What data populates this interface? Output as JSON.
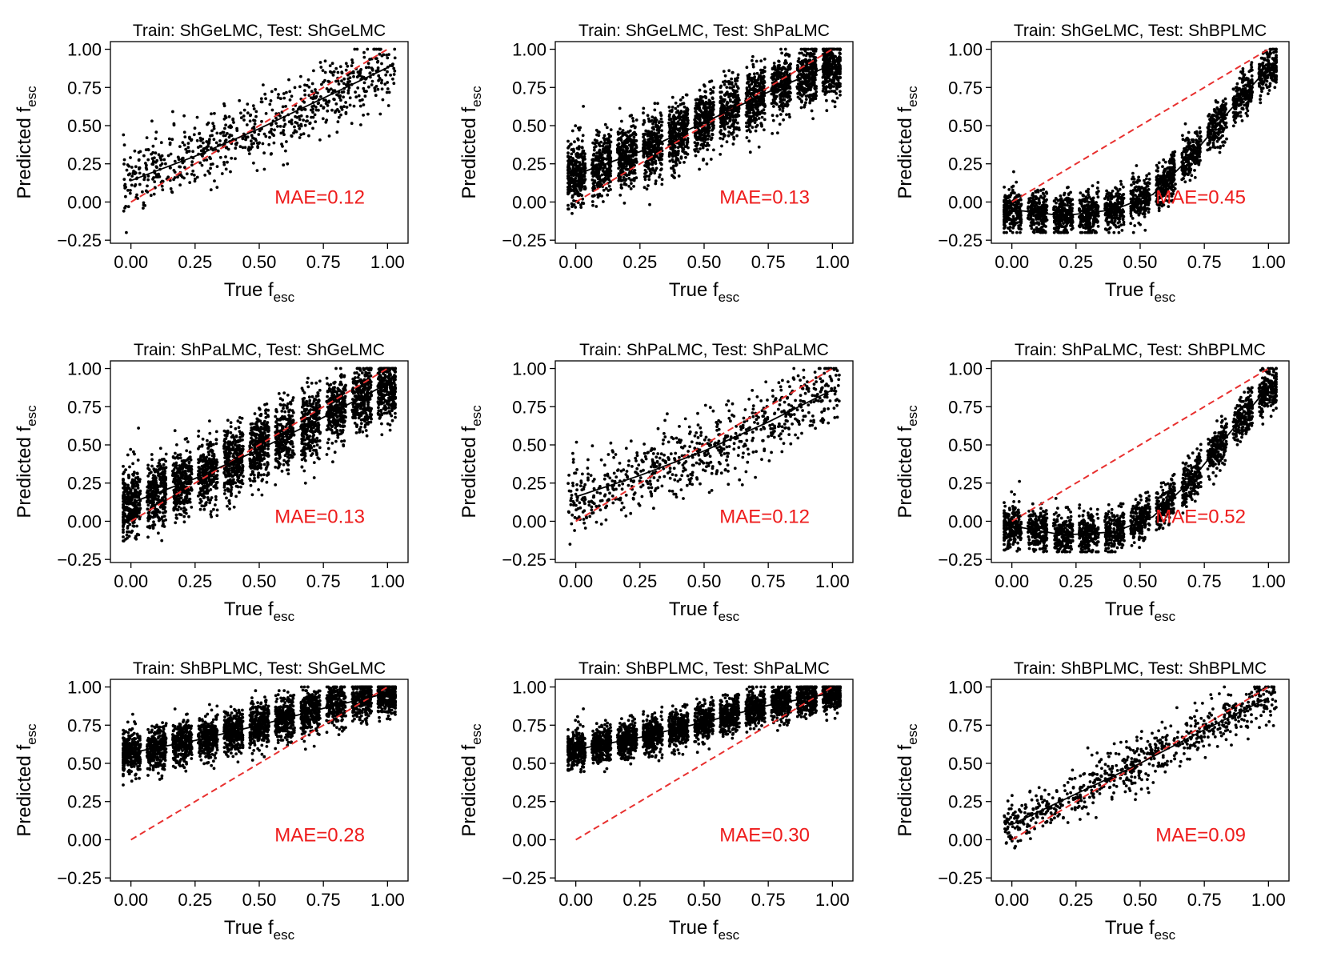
{
  "figure": {
    "x_label_main": "True f",
    "x_label_sub": "esc",
    "y_label_main": "Predicted f",
    "y_label_sub": "esc",
    "point_color": "#000000",
    "identity_line_color": "#e8302f",
    "fit_line_color": "#000000",
    "mae_color": "#ee1c1c"
  },
  "chart_data": [
    {
      "type": "scatter",
      "title": "Train: ShGeLMC, Test: ShGeLMC",
      "mae_label": "MAE=0.12",
      "xlim": [
        -0.08,
        1.08
      ],
      "ylim": [
        -0.27,
        1.05
      ],
      "xticks": [
        "0.00",
        "0.25",
        "0.50",
        "0.75",
        "1.00"
      ],
      "yticks": [
        "−0.25",
        "0.00",
        "0.25",
        "0.50",
        "0.75",
        "1.00"
      ],
      "x_grouped": false,
      "n_points": 750,
      "noise_sd": 0.11,
      "fit_line": [
        [
          0.0,
          0.14
        ],
        [
          0.25,
          0.3
        ],
        [
          0.5,
          0.48
        ],
        [
          0.75,
          0.68
        ],
        [
          1.0,
          0.88
        ]
      ]
    },
    {
      "type": "scatter",
      "title": "Train: ShGeLMC, Test: ShPaLMC",
      "mae_label": "MAE=0.13",
      "xlim": [
        -0.08,
        1.08
      ],
      "ylim": [
        -0.27,
        1.05
      ],
      "xticks": [
        "0.00",
        "0.25",
        "0.50",
        "0.75",
        "1.00"
      ],
      "yticks": [
        "−0.25",
        "0.00",
        "0.25",
        "0.50",
        "0.75",
        "1.00"
      ],
      "x_grouped": true,
      "n_points": 3200,
      "noise_sd": 0.1,
      "fit_line": [
        [
          0.0,
          0.18
        ],
        [
          0.25,
          0.33
        ],
        [
          0.5,
          0.52
        ],
        [
          0.75,
          0.72
        ],
        [
          1.0,
          0.9
        ]
      ]
    },
    {
      "type": "scatter",
      "title": "Train: ShGeLMC, Test: ShBPLMC",
      "mae_label": "MAE=0.45",
      "xlim": [
        -0.08,
        1.08
      ],
      "ylim": [
        -0.27,
        1.05
      ],
      "xticks": [
        "0.00",
        "0.25",
        "0.50",
        "0.75",
        "1.00"
      ],
      "yticks": [
        "−0.25",
        "0.00",
        "0.25",
        "0.50",
        "0.75",
        "1.00"
      ],
      "x_grouped": true,
      "n_points": 2400,
      "noise_sd": 0.07,
      "fit_line": [
        [
          0.0,
          -0.05
        ],
        [
          0.2,
          -0.09
        ],
        [
          0.4,
          -0.05
        ],
        [
          0.55,
          0.05
        ],
        [
          0.7,
          0.3
        ],
        [
          0.85,
          0.6
        ],
        [
          1.0,
          0.88
        ]
      ]
    },
    {
      "type": "scatter",
      "title": "Train: ShPaLMC, Test: ShGeLMC",
      "mae_label": "MAE=0.13",
      "xlim": [
        -0.08,
        1.08
      ],
      "ylim": [
        -0.27,
        1.05
      ],
      "xticks": [
        "0.00",
        "0.25",
        "0.50",
        "0.75",
        "1.00"
      ],
      "yticks": [
        "−0.25",
        "0.00",
        "0.25",
        "0.50",
        "0.75",
        "1.00"
      ],
      "x_grouped": true,
      "n_points": 3200,
      "noise_sd": 0.11,
      "fit_line": [
        [
          0.0,
          0.12
        ],
        [
          0.25,
          0.28
        ],
        [
          0.5,
          0.47
        ],
        [
          0.75,
          0.68
        ],
        [
          1.0,
          0.9
        ]
      ]
    },
    {
      "type": "scatter",
      "title": "Train: ShPaLMC, Test: ShPaLMC",
      "mae_label": "MAE=0.12",
      "xlim": [
        -0.08,
        1.08
      ],
      "ylim": [
        -0.27,
        1.05
      ],
      "xticks": [
        "0.00",
        "0.25",
        "0.50",
        "0.75",
        "1.00"
      ],
      "yticks": [
        "−0.25",
        "0.00",
        "0.25",
        "0.50",
        "0.75",
        "1.00"
      ],
      "x_grouped": false,
      "n_points": 750,
      "noise_sd": 0.12,
      "fit_line": [
        [
          0.0,
          0.16
        ],
        [
          0.25,
          0.3
        ],
        [
          0.5,
          0.46
        ],
        [
          0.75,
          0.65
        ],
        [
          1.0,
          0.86
        ]
      ]
    },
    {
      "type": "scatter",
      "title": "Train: ShPaLMC, Test: ShBPLMC",
      "mae_label": "MAE=0.52",
      "xlim": [
        -0.08,
        1.08
      ],
      "ylim": [
        -0.27,
        1.05
      ],
      "xticks": [
        "0.00",
        "0.25",
        "0.50",
        "0.75",
        "1.00"
      ],
      "yticks": [
        "−0.25",
        "0.00",
        "0.25",
        "0.50",
        "0.75",
        "1.00"
      ],
      "x_grouped": true,
      "n_points": 2200,
      "noise_sd": 0.07,
      "fit_line": [
        [
          0.0,
          -0.03
        ],
        [
          0.2,
          -0.09
        ],
        [
          0.4,
          -0.07
        ],
        [
          0.55,
          0.03
        ],
        [
          0.7,
          0.27
        ],
        [
          0.85,
          0.58
        ],
        [
          1.0,
          0.88
        ]
      ]
    },
    {
      "type": "scatter",
      "title": "Train: ShBPLMC, Test: ShGeLMC",
      "mae_label": "MAE=0.28",
      "xlim": [
        -0.08,
        1.08
      ],
      "ylim": [
        -0.27,
        1.05
      ],
      "xticks": [
        "0.00",
        "0.25",
        "0.50",
        "0.75",
        "1.00"
      ],
      "yticks": [
        "−0.25",
        "0.00",
        "0.25",
        "0.50",
        "0.75",
        "1.00"
      ],
      "x_grouped": true,
      "n_points": 3200,
      "noise_sd": 0.07,
      "fit_line": [
        [
          0.0,
          0.57
        ],
        [
          0.25,
          0.65
        ],
        [
          0.5,
          0.75
        ],
        [
          0.75,
          0.86
        ],
        [
          1.0,
          0.96
        ]
      ]
    },
    {
      "type": "scatter",
      "title": "Train: ShBPLMC, Test: ShPaLMC",
      "mae_label": "MAE=0.30",
      "xlim": [
        -0.08,
        1.08
      ],
      "ylim": [
        -0.27,
        1.05
      ],
      "xticks": [
        "0.00",
        "0.25",
        "0.50",
        "0.75",
        "1.00"
      ],
      "yticks": [
        "−0.25",
        "0.00",
        "0.25",
        "0.50",
        "0.75",
        "1.00"
      ],
      "x_grouped": true,
      "n_points": 3200,
      "noise_sd": 0.06,
      "fit_line": [
        [
          0.0,
          0.59
        ],
        [
          0.25,
          0.67
        ],
        [
          0.5,
          0.77
        ],
        [
          0.75,
          0.88
        ],
        [
          1.0,
          0.96
        ]
      ]
    },
    {
      "type": "scatter",
      "title": "Train: ShBPLMC, Test: ShBPLMC",
      "mae_label": "MAE=0.09",
      "xlim": [
        -0.08,
        1.08
      ],
      "ylim": [
        -0.27,
        1.05
      ],
      "xticks": [
        "0.00",
        "0.25",
        "0.50",
        "0.75",
        "1.00"
      ],
      "yticks": [
        "−0.25",
        "0.00",
        "0.25",
        "0.50",
        "0.75",
        "1.00"
      ],
      "x_grouped": false,
      "n_points": 750,
      "noise_sd": 0.08,
      "fit_line": [
        [
          0.0,
          0.1
        ],
        [
          0.25,
          0.3
        ],
        [
          0.5,
          0.5
        ],
        [
          0.75,
          0.72
        ],
        [
          1.0,
          0.93
        ]
      ]
    }
  ]
}
